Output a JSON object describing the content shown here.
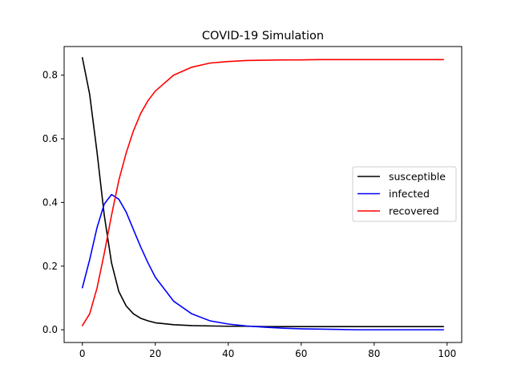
{
  "chart_data": {
    "type": "line",
    "title": "COVID-19 Simulation",
    "xlabel": "",
    "ylabel": "",
    "xlim": [
      -5,
      104
    ],
    "ylim": [
      -0.04,
      0.89
    ],
    "xticks": [
      0,
      20,
      40,
      60,
      80,
      100
    ],
    "yticks": [
      0.0,
      0.2,
      0.4,
      0.6,
      0.8
    ],
    "xtick_labels": [
      "0",
      "20",
      "40",
      "60",
      "80",
      "100"
    ],
    "ytick_labels": [
      "0.0",
      "0.2",
      "0.4",
      "0.6",
      "0.8"
    ],
    "grid": false,
    "legend_position": "center-right",
    "x": [
      0,
      2,
      4,
      6,
      8,
      10,
      12,
      14,
      16,
      18,
      20,
      25,
      30,
      35,
      40,
      45,
      50,
      55,
      60,
      65,
      70,
      75,
      80,
      85,
      90,
      95,
      99
    ],
    "series": [
      {
        "name": "susceptible",
        "color": "#000000",
        "values": [
          0.855,
          0.74,
          0.56,
          0.36,
          0.21,
          0.12,
          0.075,
          0.05,
          0.036,
          0.028,
          0.022,
          0.016,
          0.013,
          0.012,
          0.011,
          0.011,
          0.01,
          0.01,
          0.01,
          0.01,
          0.01,
          0.01,
          0.01,
          0.01,
          0.01,
          0.01,
          0.01
        ]
      },
      {
        "name": "infected",
        "color": "#0000ff",
        "values": [
          0.132,
          0.22,
          0.32,
          0.395,
          0.425,
          0.41,
          0.37,
          0.315,
          0.26,
          0.21,
          0.165,
          0.09,
          0.05,
          0.028,
          0.018,
          0.012,
          0.008,
          0.005,
          0.003,
          0.002,
          0.001,
          0.0,
          0.0,
          0.0,
          0.0,
          0.0,
          0.0
        ]
      },
      {
        "name": "recovered",
        "color": "#ff0000",
        "values": [
          0.013,
          0.05,
          0.13,
          0.24,
          0.36,
          0.47,
          0.555,
          0.625,
          0.68,
          0.72,
          0.75,
          0.8,
          0.825,
          0.838,
          0.843,
          0.846,
          0.847,
          0.848,
          0.848,
          0.849,
          0.849,
          0.849,
          0.849,
          0.849,
          0.849,
          0.849,
          0.849
        ]
      }
    ]
  }
}
